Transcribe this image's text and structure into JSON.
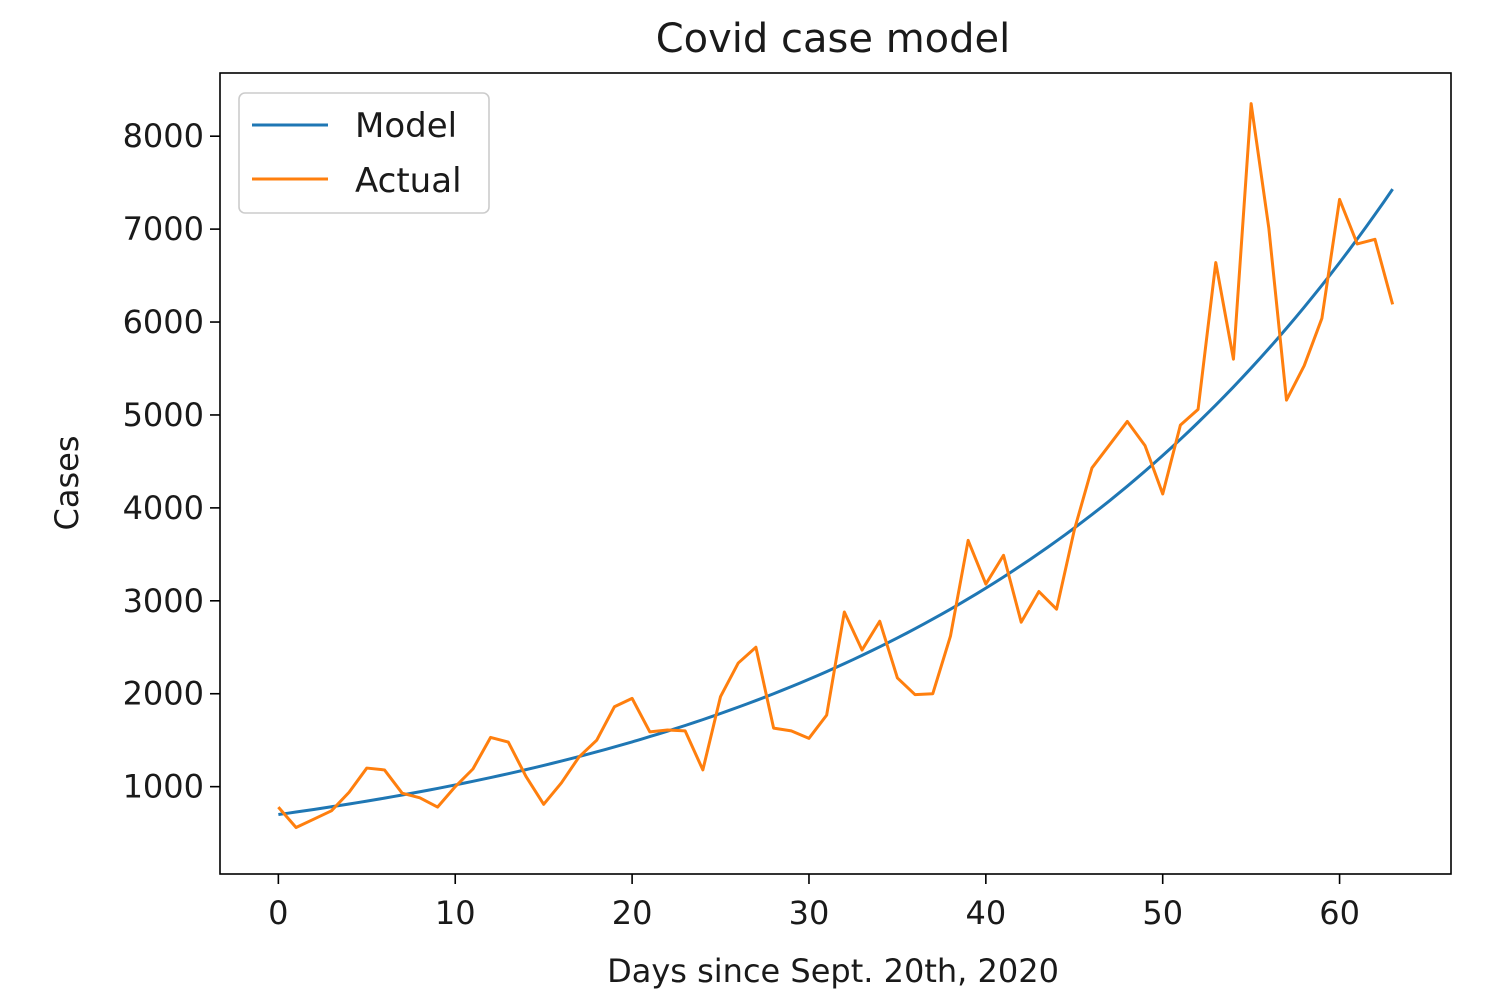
{
  "chart_data": {
    "type": "line",
    "title": "Covid case model",
    "xlabel": "Days since Sept. 20th, 2020",
    "ylabel": "Cases",
    "xlim": [
      -3.3,
      66.3
    ],
    "ylim": [
      60,
      8680
    ],
    "xticks": [
      0,
      10,
      20,
      30,
      40,
      50,
      60
    ],
    "yticks": [
      1000,
      2000,
      3000,
      4000,
      5000,
      6000,
      7000,
      8000
    ],
    "xtick_labels": [
      "0",
      "10",
      "20",
      "30",
      "40",
      "50",
      "60"
    ],
    "ytick_labels": [
      "1000",
      "2000",
      "3000",
      "4000",
      "5000",
      "6000",
      "7000",
      "8000"
    ],
    "grid": false,
    "legend_position": "upper-left",
    "series": [
      {
        "name": "Model",
        "color": "#1f77b4",
        "x": [
          0,
          63
        ],
        "model": {
          "type": "exponential",
          "start": 700,
          "end": 7430
        }
      },
      {
        "name": "Actual",
        "color": "#ff7f0e",
        "x": [
          0,
          1,
          2,
          3,
          4,
          5,
          6,
          7,
          8,
          9,
          10,
          11,
          12,
          13,
          14,
          15,
          16,
          17,
          18,
          19,
          20,
          21,
          22,
          23,
          24,
          25,
          26,
          27,
          28,
          29,
          30,
          31,
          32,
          33,
          34,
          35,
          36,
          37,
          38,
          39,
          40,
          41,
          42,
          43,
          44,
          45,
          46,
          47,
          48,
          49,
          50,
          51,
          52,
          53,
          54,
          55,
          56,
          57,
          58,
          59,
          60,
          61,
          62,
          63
        ],
        "y": [
          780,
          560,
          650,
          740,
          940,
          1200,
          1180,
          930,
          880,
          780,
          1000,
          1190,
          1530,
          1480,
          1110,
          810,
          1040,
          1320,
          1500,
          1860,
          1950,
          1590,
          1610,
          1600,
          1180,
          1970,
          2330,
          2500,
          1630,
          1600,
          1520,
          1770,
          2880,
          2470,
          2780,
          2170,
          1990,
          2000,
          2620,
          3650,
          3180,
          3490,
          2770,
          3100,
          2910,
          3760,
          4430,
          4680,
          4930,
          4670,
          4150,
          4890,
          5060,
          6640,
          5600,
          8350,
          7010,
          5160,
          5530,
          6040,
          7320,
          6840,
          6890,
          6190
        ]
      }
    ]
  }
}
